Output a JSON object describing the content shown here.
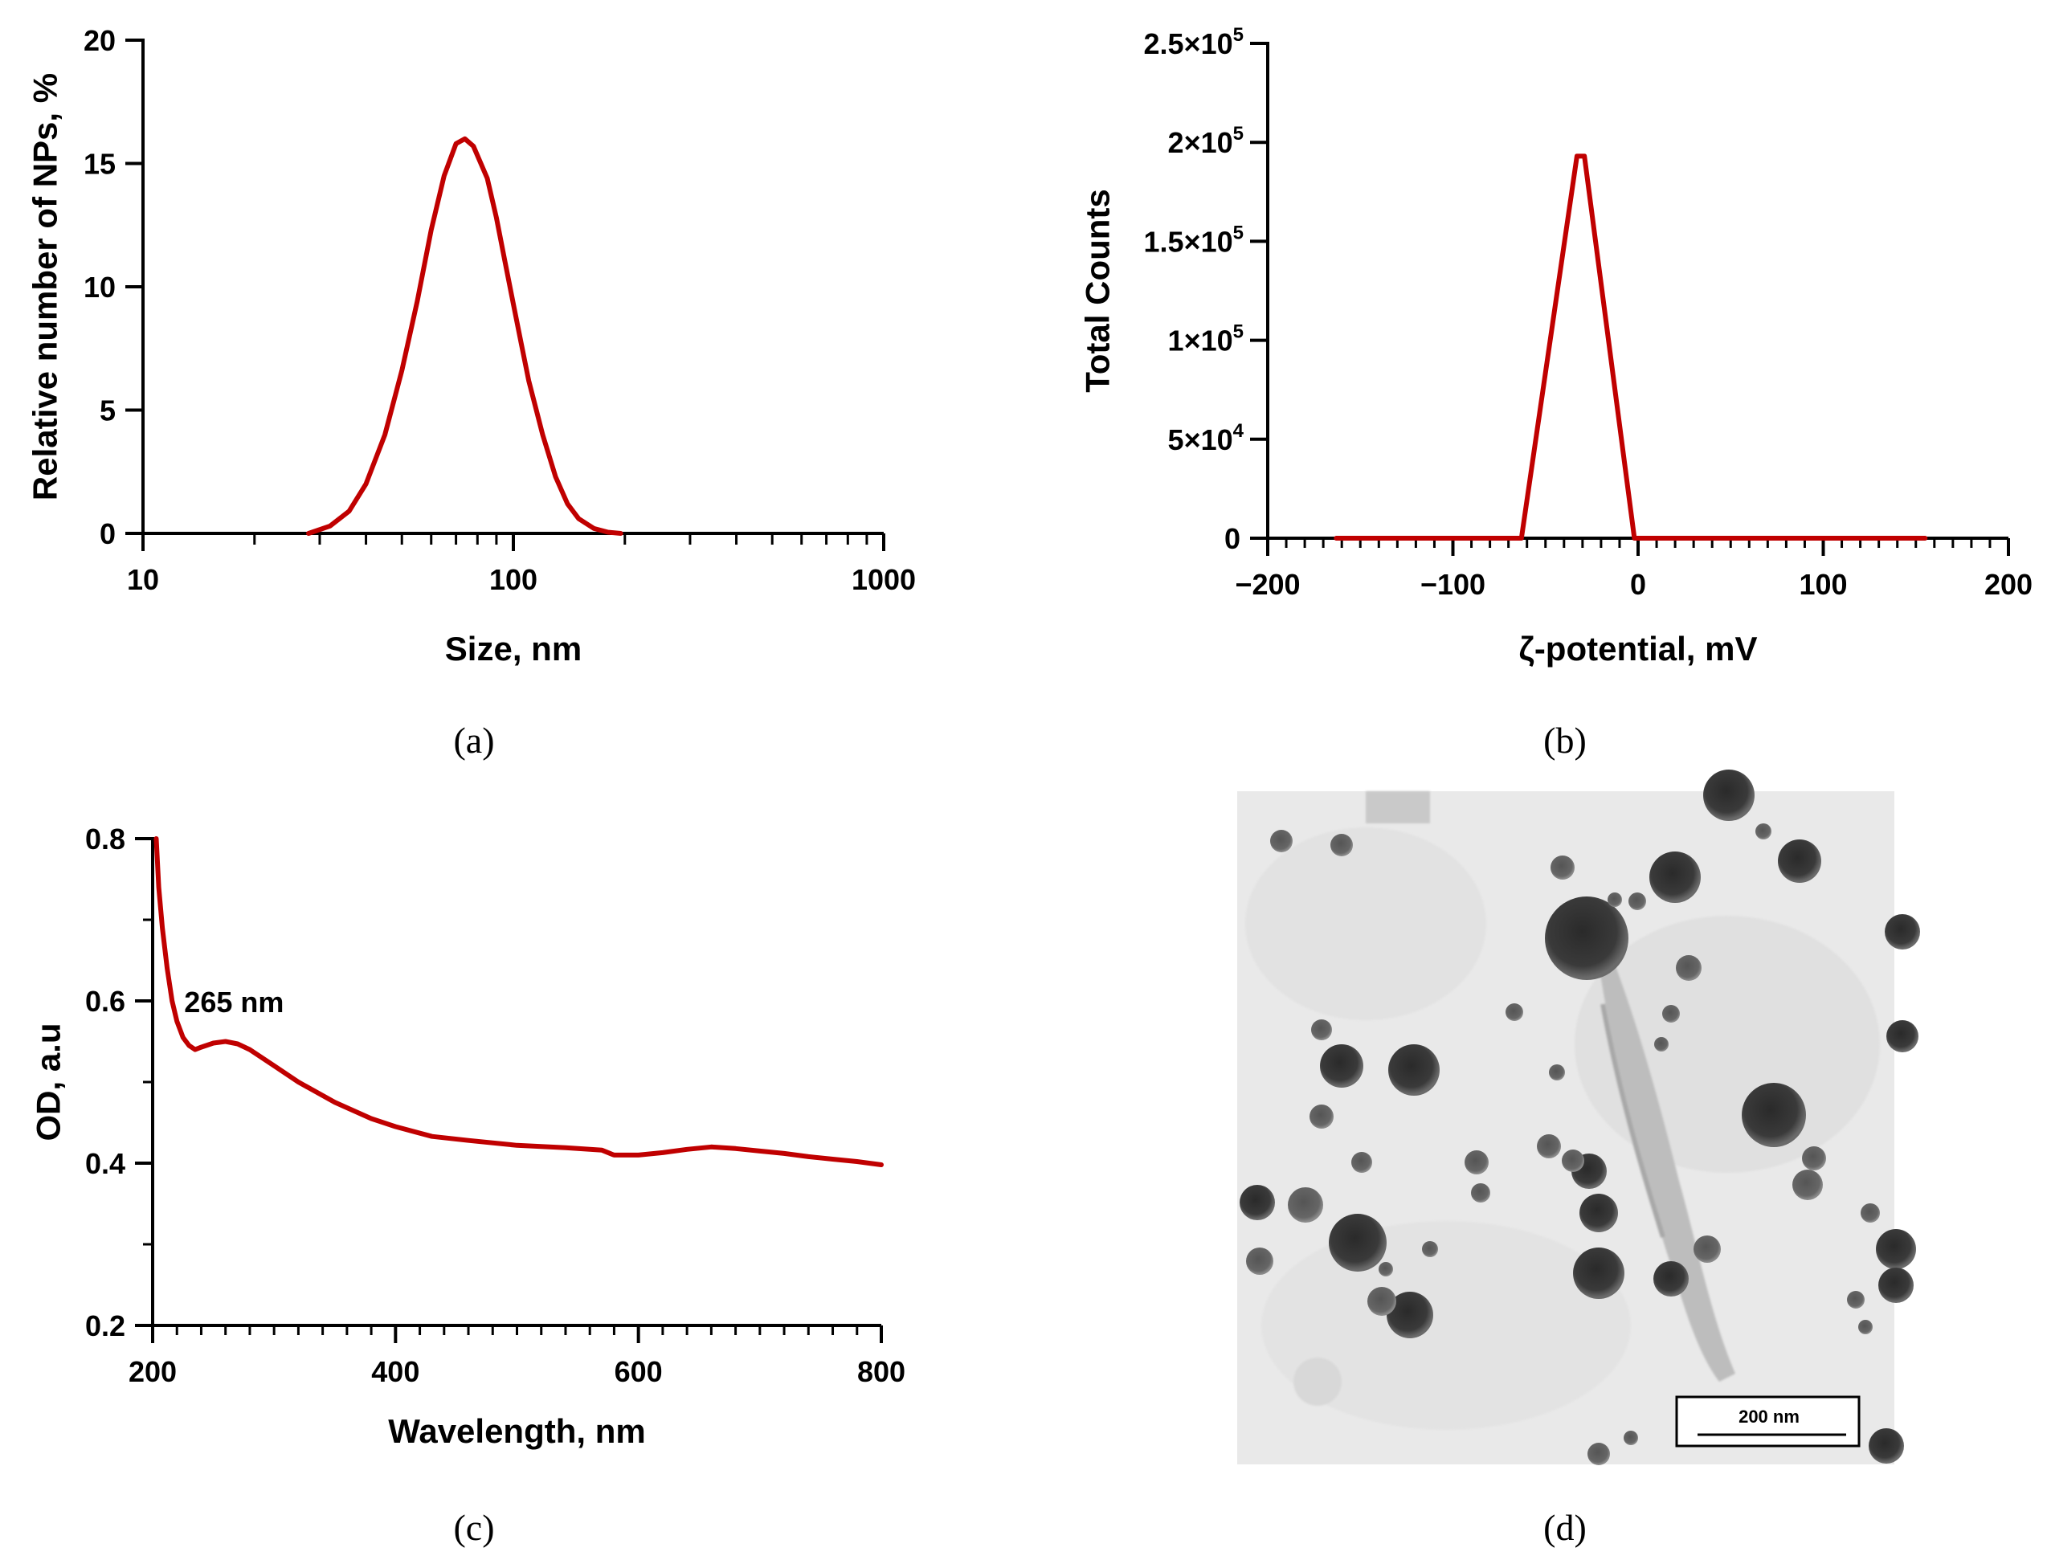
{
  "chart_data": [
    {
      "id": "a",
      "type": "line",
      "panel_label": "(a)",
      "xlabel": "Size, nm",
      "ylabel": "Relative number of NPs, %",
      "xscale": "log",
      "xlim": [
        10,
        1000
      ],
      "ylim": [
        0,
        20
      ],
      "xticks": [
        {
          "v": 10,
          "label": "10"
        },
        {
          "v": 100,
          "label": "100"
        },
        {
          "v": 1000,
          "label": "1000"
        }
      ],
      "yticks": [
        {
          "v": 0,
          "label": "0"
        },
        {
          "v": 5,
          "label": "5"
        },
        {
          "v": 10,
          "label": "10"
        },
        {
          "v": 15,
          "label": "15"
        },
        {
          "v": 20,
          "label": "20"
        }
      ],
      "series": [
        {
          "name": "size distribution",
          "color": "#c00000",
          "x": [
            28,
            32,
            36,
            40,
            45,
            50,
            55,
            60,
            65,
            70,
            74,
            78,
            85,
            90,
            95,
            100,
            105,
            110,
            120,
            130,
            140,
            150,
            165,
            180,
            195
          ],
          "y": [
            0,
            0.3,
            0.9,
            2.0,
            4.0,
            6.6,
            9.4,
            12.3,
            14.5,
            15.8,
            16.0,
            15.7,
            14.4,
            12.8,
            11.0,
            9.3,
            7.7,
            6.2,
            4.0,
            2.3,
            1.2,
            0.6,
            0.2,
            0.05,
            0
          ]
        }
      ]
    },
    {
      "id": "b",
      "type": "line",
      "panel_label": "(b)",
      "xlabel": "ζ-potential, mV",
      "ylabel": "Total Counts",
      "xlim": [
        -200,
        200
      ],
      "ylim": [
        0,
        250000
      ],
      "xticks": [
        {
          "v": -200,
          "label": "−200"
        },
        {
          "v": -100,
          "label": "−100"
        },
        {
          "v": 0,
          "label": "0"
        },
        {
          "v": 100,
          "label": "100"
        },
        {
          "v": 200,
          "label": "200"
        }
      ],
      "yticks": [
        {
          "v": 0,
          "label": "0",
          "base": "0",
          "sup": ""
        },
        {
          "v": 50000,
          "base": "5×10",
          "sup": "4"
        },
        {
          "v": 100000,
          "base": "1×10",
          "sup": "5"
        },
        {
          "v": 150000,
          "base": "1.5×10",
          "sup": "5"
        },
        {
          "v": 200000,
          "base": "2×10",
          "sup": "5"
        },
        {
          "v": 250000,
          "base": "2.5×10",
          "sup": "5"
        }
      ],
      "series": [
        {
          "name": "zeta potential",
          "color": "#c00000",
          "x": [
            -163,
            -63,
            -33,
            -29,
            -2,
            155
          ],
          "y": [
            0,
            0,
            193000,
            193000,
            0,
            0
          ]
        }
      ]
    },
    {
      "id": "c",
      "type": "line",
      "panel_label": "(c)",
      "xlabel": "Wavelength, nm",
      "ylabel": "OD, a.u",
      "xlim": [
        200,
        800
      ],
      "ylim": [
        0.2,
        0.8
      ],
      "xticks": [
        {
          "v": 200,
          "label": "200"
        },
        {
          "v": 400,
          "label": "400"
        },
        {
          "v": 600,
          "label": "600"
        },
        {
          "v": 800,
          "label": "800"
        }
      ],
      "yticks": [
        {
          "v": 0.2,
          "label": "0.2"
        },
        {
          "v": 0.4,
          "label": "0.4"
        },
        {
          "v": 0.6,
          "label": "0.6"
        },
        {
          "v": 0.8,
          "label": "0.8"
        }
      ],
      "annotation": {
        "text": "265 nm",
        "x": 226,
        "y": 0.6
      },
      "series": [
        {
          "name": "absorbance",
          "color": "#c00000",
          "x": [
            203,
            205,
            208,
            212,
            216,
            220,
            225,
            230,
            235,
            240,
            250,
            260,
            270,
            280,
            300,
            320,
            350,
            380,
            400,
            430,
            460,
            500,
            540,
            570,
            580,
            600,
            620,
            640,
            660,
            680,
            700,
            720,
            740,
            760,
            780,
            800
          ],
          "y": [
            0.8,
            0.74,
            0.69,
            0.64,
            0.6,
            0.575,
            0.555,
            0.545,
            0.54,
            0.543,
            0.548,
            0.55,
            0.547,
            0.54,
            0.52,
            0.5,
            0.475,
            0.455,
            0.445,
            0.433,
            0.428,
            0.422,
            0.419,
            0.416,
            0.41,
            0.41,
            0.413,
            0.417,
            0.42,
            0.418,
            0.415,
            0.412,
            0.408,
            0.405,
            0.402,
            0.398
          ]
        }
      ]
    }
  ],
  "tem_image": {
    "panel_label": "(d)",
    "scale_bar_label": "200 nm"
  }
}
